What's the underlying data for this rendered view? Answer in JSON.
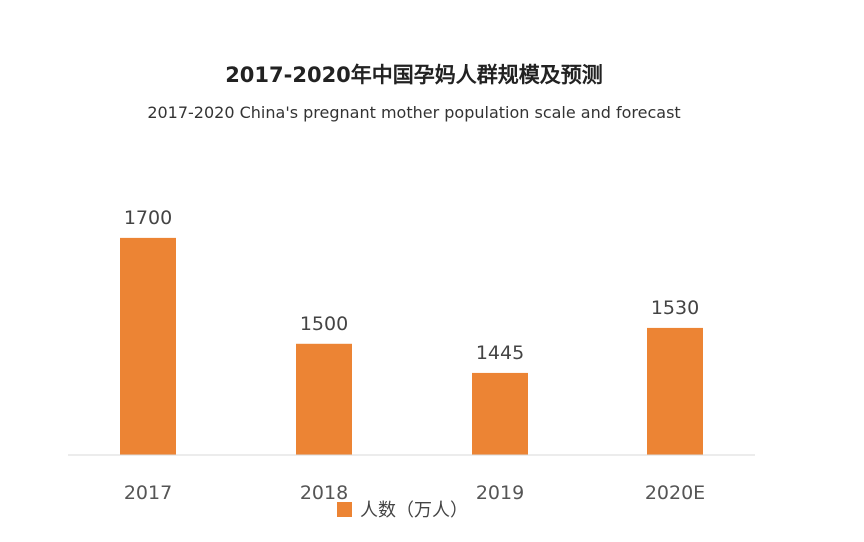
{
  "chart_data": {
    "type": "bar",
    "title": "2017-2020年中国孕妈人群规模及预测",
    "subtitle": "2017-2020 China's pregnant mother population scale and forecast",
    "categories": [
      "2017",
      "2018",
      "2019",
      "2020E"
    ],
    "series": [
      {
        "name": "人数（万人）",
        "values": [
          1700,
          1500,
          1445,
          1530
        ]
      }
    ],
    "data_labels": [
      "1700",
      "1500",
      "1445",
      "1530"
    ],
    "ylim": [
      1290,
      1730
    ],
    "grid": false,
    "legend_position": "bottom",
    "colors": {
      "bar": "#ec8434",
      "baseline": "#d9d9d9",
      "title": "#222222",
      "label": "#444444"
    }
  }
}
